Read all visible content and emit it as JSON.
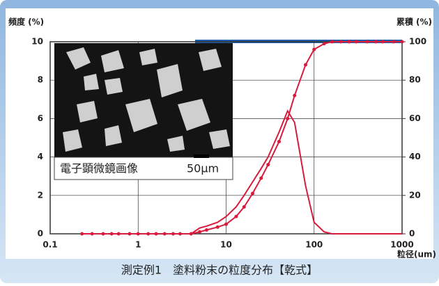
{
  "chart_data": {
    "type": "line",
    "y_label": "頻度 (%)",
    "y2_label": "累積 (%)",
    "x_label": "粒径(um)",
    "caption": "測定例1　塗料粉末の粒度分布【乾式】",
    "annotations": [
      "電子顕微鏡画像",
      "50μm"
    ],
    "log_x": true,
    "grid": true,
    "xlim": [
      0.1,
      1000
    ],
    "xticks": [
      0.1,
      1,
      10,
      100,
      1000
    ],
    "ylim": [
      0,
      10
    ],
    "yticks": [
      0,
      2,
      4,
      6,
      8,
      10
    ],
    "y2lim": [
      0,
      100
    ],
    "y2ticks": [
      0,
      20,
      40,
      60,
      80,
      100
    ],
    "x": [
      0.23,
      0.3,
      0.4,
      0.5,
      0.6,
      0.8,
      1,
      1.3,
      1.6,
      2,
      2.5,
      3,
      4,
      5,
      6,
      8,
      10,
      13,
      16,
      20,
      25,
      30,
      40,
      50,
      60,
      80,
      100,
      130,
      160,
      200,
      250,
      300,
      400,
      500,
      600,
      800,
      1000
    ],
    "series": [
      {
        "color": "#d81b3c",
        "markers": false,
        "values": [
          0,
          0,
          0,
          0,
          0,
          0,
          0,
          0,
          0,
          0,
          0,
          0,
          0,
          0.3,
          0.4,
          0.6,
          0.9,
          1.4,
          2,
          2.7,
          3.4,
          4,
          5.3,
          6.4,
          5.8,
          2.5,
          0.6,
          0.1,
          0,
          0,
          0,
          0,
          0,
          0,
          0,
          0,
          0
        ]
      },
      {
        "color": "#d81b3c",
        "markers": true,
        "axis": "y2",
        "values": [
          0,
          0,
          0,
          0,
          0,
          0,
          0,
          0,
          0,
          0,
          0,
          0,
          0,
          1,
          2,
          3.5,
          5,
          9,
          14,
          21,
          29,
          36,
          48,
          60,
          72,
          88,
          96,
          99,
          100,
          100,
          100,
          100,
          100,
          100,
          100,
          100,
          100
        ]
      }
    ]
  }
}
